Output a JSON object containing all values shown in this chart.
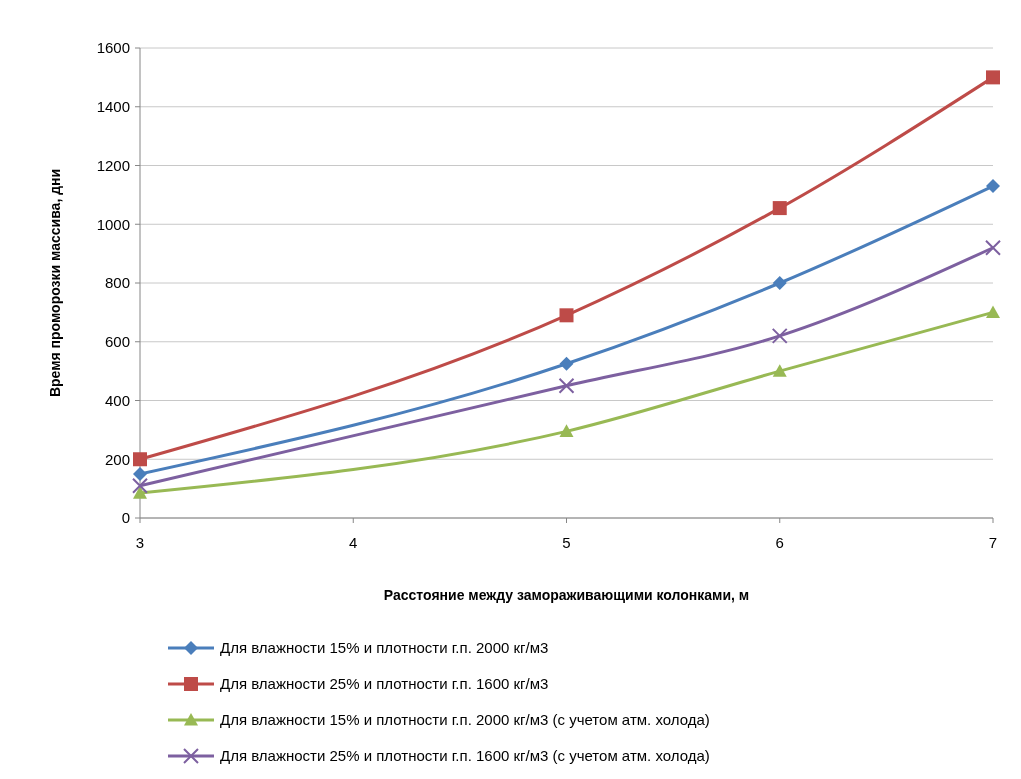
{
  "chart_data": {
    "type": "line",
    "xlabel": "Расстояние между замораживающими колонками, м",
    "ylabel": "Время проморозки массива, дни",
    "xlim": [
      3,
      7
    ],
    "xticks": [
      3,
      4,
      5,
      6,
      7
    ],
    "ylim": [
      0,
      1600
    ],
    "yticks": [
      0,
      200,
      400,
      600,
      800,
      1000,
      1200,
      1400,
      1600
    ],
    "grid": "y",
    "legend": "bottom",
    "line_style": "solid",
    "series": [
      {
        "name": "Для влажности 15% и плотности г.п. 2000 кг/м3",
        "color": "#4a7ebb",
        "marker": "diamond",
        "x": [
          3,
          5,
          6,
          7
        ],
        "values": [
          150,
          525,
          800,
          1130
        ]
      },
      {
        "name": "Для влажности 25% и плотности г.п. 1600 кг/м3",
        "color": "#be4b48",
        "marker": "square",
        "x": [
          3,
          5,
          6,
          7
        ],
        "values": [
          200,
          690,
          1055,
          1500
        ]
      },
      {
        "name": "Для влажности 15% и плотности г.п. 2000 кг/м3 (с учетом атм. холода)",
        "color": "#98b954",
        "marker": "triangle",
        "x": [
          3,
          5,
          6,
          7
        ],
        "values": [
          85,
          295,
          500,
          700
        ]
      },
      {
        "name": "Для влажности 25% и плотности г.п. 1600 кг/м3 (с учетом атм. холода)",
        "color": "#7d60a0",
        "marker": "cross",
        "x": [
          3,
          5,
          6,
          7
        ],
        "values": [
          110,
          450,
          620,
          920
        ]
      }
    ]
  }
}
